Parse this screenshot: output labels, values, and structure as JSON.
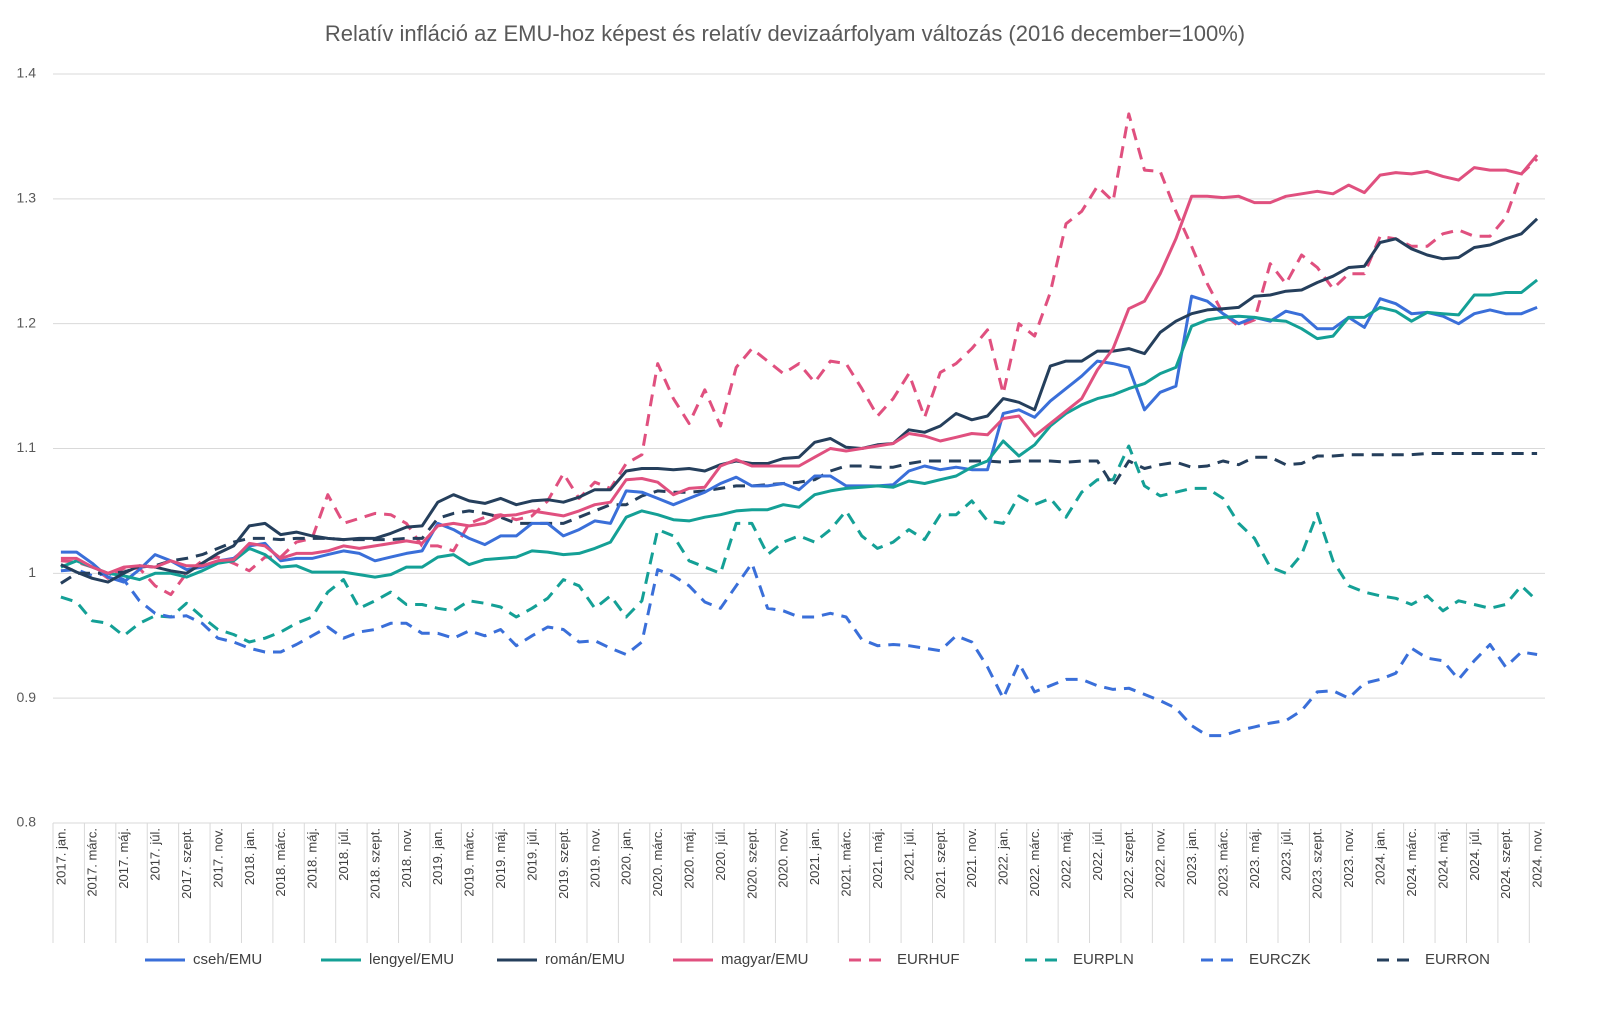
{
  "chart_data": {
    "type": "line",
    "title": "Relatív infláció az EMU-hoz képest és relatív devizaárfolyam változás (2016 december=100%)",
    "categories": [
      "2017. jan.",
      null,
      "2017. márc.",
      null,
      "2017. máj.",
      null,
      "2017. júl.",
      null,
      "2017. szept.",
      null,
      "2017. nov.",
      null,
      "2018. jan.",
      null,
      "2018. márc.",
      null,
      "2018. máj.",
      null,
      "2018. júl.",
      null,
      "2018. szept.",
      null,
      "2018. nov.",
      null,
      "2019. jan.",
      null,
      "2019. márc.",
      null,
      "2019. máj.",
      null,
      "2019. júl.",
      null,
      "2019. szept.",
      null,
      "2019. nov.",
      null,
      "2020. jan.",
      null,
      "2020. márc.",
      null,
      "2020. máj.",
      null,
      "2020. júl.",
      null,
      "2020. szept.",
      null,
      "2020. nov.",
      null,
      "2021. jan.",
      null,
      "2021. márc.",
      null,
      "2021. máj.",
      null,
      "2021. júl.",
      null,
      "2021. szept.",
      null,
      "2021. nov.",
      null,
      "2022. jan.",
      null,
      "2022. márc.",
      null,
      "2022. máj.",
      null,
      "2022. júl.",
      null,
      "2022. szept.",
      null,
      "2022. nov.",
      null,
      "2023. jan.",
      null,
      "2023. márc.",
      null,
      "2023. máj.",
      null,
      "2023. júl.",
      null,
      "2023. szept.",
      null,
      "2023. nov.",
      null,
      "2024. jan.",
      null,
      "2024. márc.",
      null,
      "2024. máj.",
      null,
      "2024. júl.",
      null,
      "2024. szept.",
      null,
      "2024. nov."
    ],
    "ylim": [
      0.8,
      1.4
    ],
    "yticks": [
      0.8,
      0.9,
      1,
      1.1,
      1.2,
      1.3,
      1.4
    ],
    "grid": true,
    "legend": "bottom",
    "series": [
      {
        "name": "cseh/EMU",
        "color": "#3a6fd9",
        "dashed": false,
        "values": [
          1.017,
          1.017,
          1.008,
          0.997,
          0.993,
          1.003,
          1.015,
          1.01,
          1.003,
          1.005,
          1.01,
          1.012,
          1.022,
          1.024,
          1.01,
          1.012,
          1.012,
          1.015,
          1.018,
          1.016,
          1.01,
          1.013,
          1.016,
          1.018,
          1.04,
          1.035,
          1.028,
          1.023,
          1.03,
          1.03,
          1.04,
          1.04,
          1.03,
          1.035,
          1.042,
          1.04,
          1.066,
          1.065,
          1.06,
          1.055,
          1.06,
          1.065,
          1.072,
          1.077,
          1.07,
          1.07,
          1.072,
          1.067,
          1.078,
          1.078,
          1.07,
          1.07,
          1.07,
          1.071,
          1.082,
          1.086,
          1.083,
          1.085,
          1.083,
          1.083,
          1.128,
          1.131,
          1.125,
          1.138,
          1.148,
          1.158,
          1.17,
          1.168,
          1.165,
          1.131,
          1.145,
          1.15,
          1.222,
          1.218,
          1.208,
          1.2,
          1.205,
          1.202,
          1.21,
          1.207,
          1.196,
          1.196,
          1.205,
          1.197,
          1.22,
          1.216,
          1.208,
          1.209,
          1.206,
          1.2,
          1.208,
          1.211,
          1.208,
          1.208,
          1.213
        ]
      },
      {
        "name": "lengyel/EMU",
        "color": "#14a096",
        "dashed": false,
        "values": [
          1.005,
          1.01,
          1.005,
          1.0,
          0.998,
          0.995,
          1.0,
          1.0,
          0.997,
          1.002,
          1.008,
          1.01,
          1.02,
          1.015,
          1.005,
          1.006,
          1.001,
          1.001,
          1.001,
          0.999,
          0.997,
          0.999,
          1.005,
          1.005,
          1.013,
          1.015,
          1.007,
          1.011,
          1.012,
          1.013,
          1.018,
          1.017,
          1.015,
          1.016,
          1.02,
          1.025,
          1.045,
          1.05,
          1.047,
          1.043,
          1.042,
          1.045,
          1.047,
          1.05,
          1.051,
          1.051,
          1.055,
          1.053,
          1.063,
          1.066,
          1.068,
          1.069,
          1.07,
          1.069,
          1.074,
          1.072,
          1.075,
          1.078,
          1.085,
          1.09,
          1.106,
          1.094,
          1.103,
          1.118,
          1.128,
          1.135,
          1.14,
          1.143,
          1.148,
          1.152,
          1.16,
          1.165,
          1.198,
          1.203,
          1.205,
          1.206,
          1.205,
          1.203,
          1.202,
          1.196,
          1.188,
          1.19,
          1.205,
          1.205,
          1.213,
          1.21,
          1.202,
          1.209,
          1.208,
          1.207,
          1.223,
          1.223,
          1.225,
          1.225,
          1.235
        ]
      },
      {
        "name": "román/EMU",
        "color": "#253f5c",
        "dashed": false,
        "values": [
          1.007,
          1.001,
          0.996,
          0.993,
          1.0,
          1.006,
          1.005,
          1.002,
          1.0,
          1.008,
          1.016,
          1.022,
          1.038,
          1.04,
          1.031,
          1.033,
          1.03,
          1.028,
          1.027,
          1.028,
          1.028,
          1.032,
          1.037,
          1.038,
          1.057,
          1.063,
          1.058,
          1.056,
          1.06,
          1.055,
          1.058,
          1.059,
          1.057,
          1.061,
          1.067,
          1.067,
          1.082,
          1.084,
          1.084,
          1.083,
          1.084,
          1.082,
          1.087,
          1.09,
          1.088,
          1.088,
          1.092,
          1.093,
          1.105,
          1.108,
          1.101,
          1.1,
          1.103,
          1.104,
          1.115,
          1.113,
          1.118,
          1.128,
          1.123,
          1.126,
          1.14,
          1.137,
          1.131,
          1.166,
          1.17,
          1.17,
          1.178,
          1.178,
          1.18,
          1.176,
          1.193,
          1.202,
          1.208,
          1.211,
          1.212,
          1.213,
          1.222,
          1.223,
          1.226,
          1.227,
          1.233,
          1.238,
          1.245,
          1.246,
          1.265,
          1.268,
          1.26,
          1.255,
          1.252,
          1.253,
          1.261,
          1.263,
          1.268,
          1.272,
          1.284
        ]
      },
      {
        "name": "magyar/EMU",
        "color": "#e0507f",
        "dashed": false,
        "values": [
          1.012,
          1.012,
          1.005,
          1.0,
          1.005,
          1.006,
          1.005,
          1.01,
          1.006,
          1.006,
          1.01,
          1.011,
          1.024,
          1.022,
          1.012,
          1.016,
          1.016,
          1.018,
          1.022,
          1.02,
          1.022,
          1.024,
          1.026,
          1.024,
          1.038,
          1.04,
          1.038,
          1.04,
          1.046,
          1.047,
          1.05,
          1.048,
          1.046,
          1.05,
          1.055,
          1.057,
          1.075,
          1.076,
          1.073,
          1.063,
          1.068,
          1.069,
          1.086,
          1.091,
          1.086,
          1.086,
          1.086,
          1.086,
          1.093,
          1.1,
          1.098,
          1.1,
          1.102,
          1.104,
          1.112,
          1.11,
          1.106,
          1.109,
          1.112,
          1.111,
          1.124,
          1.126,
          1.11,
          1.12,
          1.13,
          1.14,
          1.163,
          1.18,
          1.212,
          1.218,
          1.24,
          1.268,
          1.302,
          1.302,
          1.301,
          1.302,
          1.297,
          1.297,
          1.302,
          1.304,
          1.306,
          1.304,
          1.311,
          1.305,
          1.319,
          1.321,
          1.32,
          1.322,
          1.318,
          1.315,
          1.325,
          1.323,
          1.323,
          1.32,
          1.335
        ]
      },
      {
        "name": "EURHUF",
        "color": "#e0507f",
        "dashed": true,
        "values": [
          1.01,
          1.009,
          1.005,
          0.996,
          1.004,
          1.004,
          0.99,
          0.983,
          1.0,
          1.01,
          1.013,
          1.008,
          1.002,
          1.013,
          1.013,
          1.025,
          1.028,
          1.063,
          1.04,
          1.044,
          1.048,
          1.047,
          1.04,
          1.022,
          1.022,
          1.018,
          1.04,
          1.045,
          1.047,
          1.043,
          1.046,
          1.058,
          1.08,
          1.06,
          1.073,
          1.068,
          1.088,
          1.095,
          1.168,
          1.14,
          1.12,
          1.147,
          1.118,
          1.165,
          1.18,
          1.17,
          1.16,
          1.168,
          1.153,
          1.17,
          1.168,
          1.148,
          1.126,
          1.14,
          1.16,
          1.125,
          1.161,
          1.168,
          1.18,
          1.195,
          1.144,
          1.2,
          1.19,
          1.225,
          1.28,
          1.29,
          1.31,
          1.298,
          1.368,
          1.323,
          1.322,
          1.29,
          1.262,
          1.232,
          1.208,
          1.198,
          1.203,
          1.248,
          1.232,
          1.255,
          1.245,
          1.228,
          1.24,
          1.24,
          1.27,
          1.268,
          1.262,
          1.262,
          1.272,
          1.275,
          1.27,
          1.27,
          1.285,
          1.32,
          1.332
        ]
      },
      {
        "name": "EURPLN",
        "color": "#14a096",
        "dashed": true,
        "values": [
          0.981,
          0.977,
          0.962,
          0.96,
          0.95,
          0.96,
          0.966,
          0.965,
          0.976,
          0.965,
          0.955,
          0.951,
          0.945,
          0.948,
          0.953,
          0.96,
          0.965,
          0.985,
          0.995,
          0.972,
          0.978,
          0.985,
          0.975,
          0.975,
          0.972,
          0.97,
          0.978,
          0.976,
          0.973,
          0.965,
          0.972,
          0.98,
          0.995,
          0.99,
          0.972,
          0.982,
          0.965,
          0.978,
          1.035,
          1.03,
          1.01,
          1.005,
          1.0,
          1.04,
          1.04,
          1.015,
          1.025,
          1.03,
          1.025,
          1.035,
          1.05,
          1.03,
          1.02,
          1.025,
          1.035,
          1.027,
          1.047,
          1.047,
          1.058,
          1.042,
          1.04,
          1.062,
          1.055,
          1.06,
          1.045,
          1.065,
          1.075,
          1.075,
          1.102,
          1.07,
          1.062,
          1.065,
          1.068,
          1.068,
          1.06,
          1.04,
          1.028,
          1.005,
          1.0,
          1.015,
          1.048,
          1.01,
          0.99,
          0.985,
          0.982,
          0.98,
          0.975,
          0.982,
          0.97,
          0.978,
          0.975,
          0.972,
          0.975,
          0.99,
          0.978
        ]
      },
      {
        "name": "EURCZK",
        "color": "#3a6fd9",
        "dashed": true,
        "values": [
          1.002,
          1.003,
          0.998,
          1.0,
          0.995,
          0.978,
          0.968,
          0.965,
          0.966,
          0.96,
          0.948,
          0.945,
          0.94,
          0.937,
          0.937,
          0.943,
          0.95,
          0.957,
          0.948,
          0.953,
          0.955,
          0.96,
          0.96,
          0.952,
          0.952,
          0.948,
          0.954,
          0.95,
          0.955,
          0.942,
          0.95,
          0.957,
          0.955,
          0.945,
          0.946,
          0.94,
          0.935,
          0.945,
          1.003,
          0.998,
          0.99,
          0.977,
          0.972,
          0.99,
          1.008,
          0.972,
          0.97,
          0.965,
          0.965,
          0.968,
          0.965,
          0.947,
          0.942,
          0.943,
          0.942,
          0.94,
          0.938,
          0.95,
          0.945,
          0.925,
          0.9,
          0.928,
          0.905,
          0.91,
          0.915,
          0.915,
          0.91,
          0.907,
          0.908,
          0.903,
          0.898,
          0.892,
          0.878,
          0.87,
          0.87,
          0.874,
          0.877,
          0.88,
          0.882,
          0.89,
          0.905,
          0.906,
          0.9,
          0.912,
          0.915,
          0.92,
          0.94,
          0.932,
          0.93,
          0.915,
          0.93,
          0.943,
          0.925,
          0.937,
          0.935
        ]
      },
      {
        "name": "EURRON",
        "color": "#253f5c",
        "dashed": true,
        "values": [
          0.992,
          1.0,
          1.0,
          1.0,
          1.001,
          1.005,
          1.006,
          1.01,
          1.012,
          1.015,
          1.02,
          1.025,
          1.028,
          1.028,
          1.027,
          1.028,
          1.028,
          1.028,
          1.027,
          1.027,
          1.027,
          1.027,
          1.028,
          1.028,
          1.044,
          1.048,
          1.05,
          1.048,
          1.045,
          1.04,
          1.04,
          1.04,
          1.04,
          1.045,
          1.05,
          1.055,
          1.055,
          1.062,
          1.066,
          1.065,
          1.065,
          1.066,
          1.068,
          1.07,
          1.07,
          1.071,
          1.072,
          1.073,
          1.075,
          1.082,
          1.086,
          1.086,
          1.085,
          1.085,
          1.088,
          1.09,
          1.09,
          1.09,
          1.09,
          1.09,
          1.089,
          1.09,
          1.09,
          1.09,
          1.089,
          1.09,
          1.09,
          1.07,
          1.09,
          1.084,
          1.087,
          1.089,
          1.085,
          1.086,
          1.09,
          1.087,
          1.093,
          1.093,
          1.087,
          1.088,
          1.094,
          1.094,
          1.095,
          1.095,
          1.095,
          1.095,
          1.095,
          1.096,
          1.096,
          1.096,
          1.096,
          1.096,
          1.096,
          1.096,
          1.096
        ]
      }
    ]
  }
}
